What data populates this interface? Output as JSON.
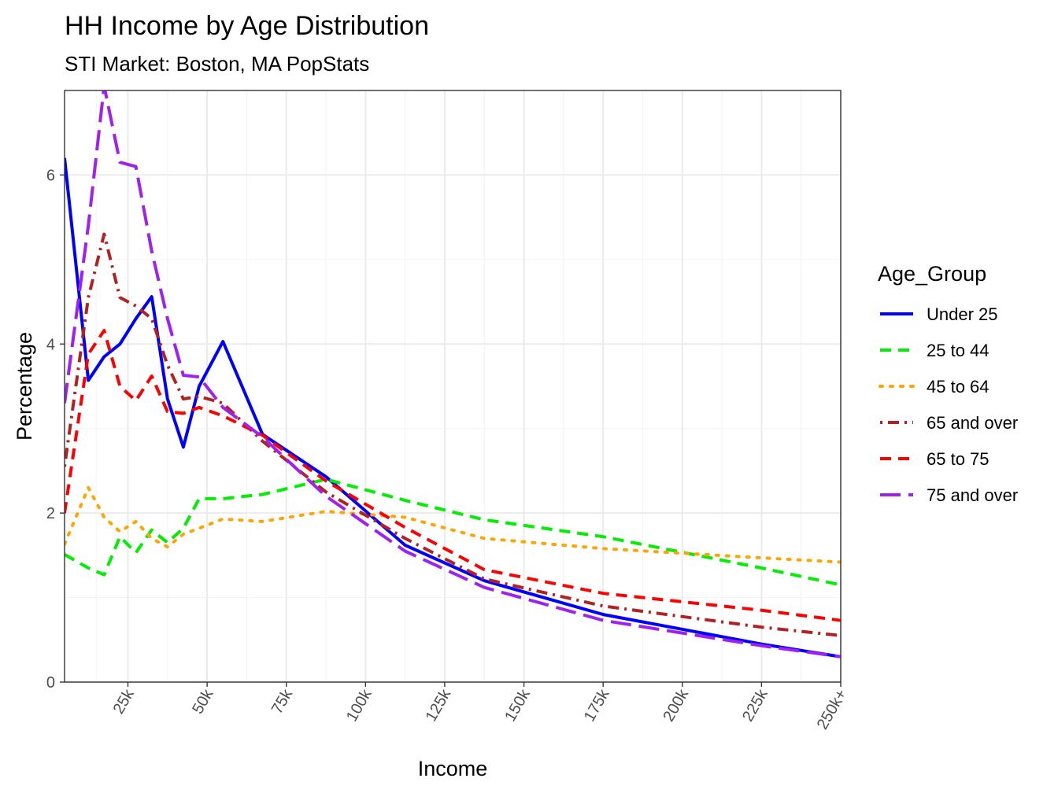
{
  "chart_data": {
    "type": "line",
    "title": "HH Income by Age Distribution",
    "subtitle": "STI Market: Boston, MA PopStats",
    "xlabel": "Income",
    "ylabel": "Percentage",
    "xlim": [
      5,
      250
    ],
    "ylim": [
      0,
      7
    ],
    "x_ticks": [
      {
        "value": 25,
        "label": "25k"
      },
      {
        "value": 50,
        "label": "50k"
      },
      {
        "value": 75,
        "label": "75k"
      },
      {
        "value": 100,
        "label": "100k"
      },
      {
        "value": 125,
        "label": "125k"
      },
      {
        "value": 150,
        "label": "150k"
      },
      {
        "value": 175,
        "label": "175k"
      },
      {
        "value": 200,
        "label": "200k"
      },
      {
        "value": 225,
        "label": "225k"
      },
      {
        "value": 250,
        "label": "250k+"
      }
    ],
    "y_ticks": [
      {
        "value": 0,
        "label": "0"
      },
      {
        "value": 2,
        "label": "2"
      },
      {
        "value": 4,
        "label": "4"
      },
      {
        "value": 6,
        "label": "6"
      }
    ],
    "grid": true,
    "legend_title": "Age_Group",
    "legend_position": "right",
    "x": [
      5,
      12.5,
      17.5,
      22.5,
      27.5,
      32.5,
      37.5,
      42.5,
      47.5,
      55,
      67.5,
      87.5,
      112.5,
      137.5,
      175,
      225,
      250
    ],
    "series": [
      {
        "name": "Under 25",
        "color": "#0000FF",
        "dash": "solid",
        "values": [
          6.2,
          3.57,
          3.85,
          4.0,
          4.3,
          4.56,
          3.35,
          2.78,
          3.5,
          4.03,
          2.93,
          2.43,
          1.62,
          1.2,
          0.8,
          0.45,
          0.3
        ]
      },
      {
        "name": "25 to 44",
        "color": "#00EE00",
        "dash": "dashed",
        "values": [
          1.51,
          1.35,
          1.27,
          1.72,
          1.53,
          1.8,
          1.65,
          1.82,
          2.17,
          2.17,
          2.22,
          2.4,
          2.15,
          1.92,
          1.72,
          1.35,
          1.15
        ]
      },
      {
        "name": "45 to 64",
        "color": "#FFA500",
        "dash": "dotted",
        "values": [
          1.63,
          2.3,
          1.95,
          1.78,
          1.9,
          1.7,
          1.6,
          1.75,
          1.82,
          1.93,
          1.9,
          2.02,
          1.95,
          1.7,
          1.58,
          1.47,
          1.42
        ]
      },
      {
        "name": "65 and over",
        "color": "#B22222",
        "dash": "dotdash",
        "values": [
          2.55,
          4.55,
          5.3,
          4.55,
          4.45,
          4.3,
          3.75,
          3.35,
          3.38,
          3.3,
          2.85,
          2.25,
          1.7,
          1.22,
          0.9,
          0.65,
          0.55
        ]
      },
      {
        "name": "65 to 75",
        "color": "#FF0000",
        "dash": "dashed",
        "values": [
          2.0,
          3.88,
          4.16,
          3.5,
          3.33,
          3.62,
          3.2,
          3.18,
          3.25,
          3.15,
          2.92,
          2.38,
          1.83,
          1.33,
          1.05,
          0.85,
          0.73
        ]
      },
      {
        "name": "75 and over",
        "color": "#A020F0",
        "dash": "longdash",
        "values": [
          3.3,
          5.4,
          7.05,
          6.15,
          6.1,
          5.1,
          4.3,
          3.63,
          3.61,
          3.25,
          2.9,
          2.2,
          1.55,
          1.12,
          0.73,
          0.43,
          0.3
        ]
      }
    ]
  }
}
